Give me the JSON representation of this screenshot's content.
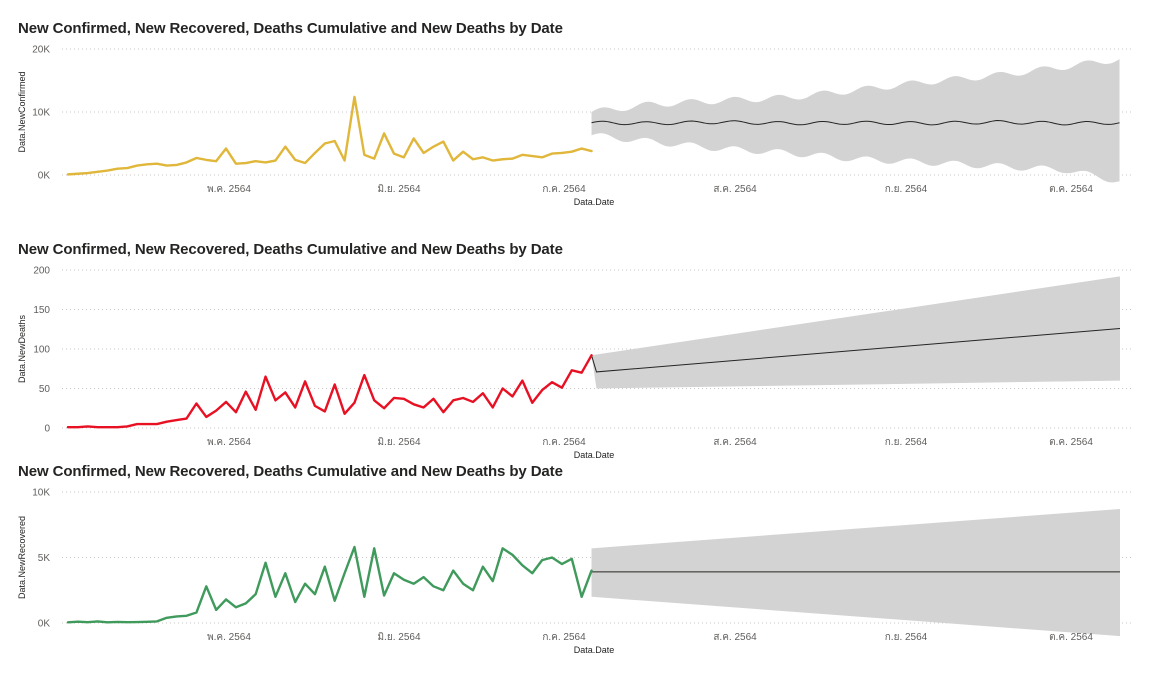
{
  "chart_data": [
    {
      "type": "line",
      "title": "New Confirmed, New Recovered, Deaths Cumulative and New Deaths by Date",
      "xlabel": "Data.Date",
      "ylabel": "Data.NewConfirmed",
      "x_ticks": [
        "พ.ค. 2564",
        "มิ.ย. 2564",
        "ก.ค. 2564",
        "ส.ค. 2564",
        "ก.ย. 2564",
        "ต.ค. 2564"
      ],
      "y_ticks": [
        "0K",
        "10K",
        "20K"
      ],
      "ylim": [
        0,
        20000
      ],
      "xlim": [
        "2021-04-01",
        "2021-10-31"
      ],
      "grid": true,
      "series_color": "#e0b73a",
      "forecast_color": "#252423",
      "band_color": "#d3d3d3",
      "series": [
        {
          "x": [
            "2021-04-01",
            "2021-04-03",
            "2021-04-05",
            "2021-04-07",
            "2021-04-09",
            "2021-04-11",
            "2021-04-13",
            "2021-04-15",
            "2021-04-17",
            "2021-04-19",
            "2021-04-21",
            "2021-04-23",
            "2021-04-25",
            "2021-04-27",
            "2021-04-29",
            "2021-05-01",
            "2021-05-03",
            "2021-05-05",
            "2021-05-07",
            "2021-05-09",
            "2021-05-11",
            "2021-05-13",
            "2021-05-15",
            "2021-05-17",
            "2021-05-19",
            "2021-05-21",
            "2021-05-23",
            "2021-05-25",
            "2021-05-27",
            "2021-05-29",
            "2021-05-31",
            "2021-06-02",
            "2021-06-04",
            "2021-06-06",
            "2021-06-08",
            "2021-06-10",
            "2021-06-12",
            "2021-06-14",
            "2021-06-16",
            "2021-06-18",
            "2021-06-20",
            "2021-06-22",
            "2021-06-24",
            "2021-06-26",
            "2021-06-28",
            "2021-06-30",
            "2021-07-02",
            "2021-07-04",
            "2021-07-06",
            "2021-07-08",
            "2021-07-10",
            "2021-07-12",
            "2021-07-14",
            "2021-07-16"
          ],
          "y": [
            100,
            200,
            300,
            500,
            700,
            1000,
            1100,
            1500,
            1700,
            1800,
            1500,
            1600,
            2000,
            2700,
            2400,
            2200,
            4200,
            1800,
            1900,
            2200,
            2000,
            2300,
            4500,
            2400,
            1900,
            3500,
            5000,
            5400,
            2300,
            12400,
            3200,
            2600,
            6600,
            3400,
            2800,
            5800,
            3500,
            4500,
            5300,
            2300,
            3700,
            2500,
            2800,
            2300,
            2500,
            2600,
            3200,
            3000,
            2800,
            3400,
            3500,
            3700,
            4200,
            3800
          ]
        }
      ],
      "forecast": {
        "x": [
          "2021-07-16",
          "2021-07-28",
          "2021-08-11",
          "2021-08-25",
          "2021-09-08",
          "2021-09-22",
          "2021-10-06",
          "2021-10-20",
          "2021-10-31"
        ],
        "y": [
          8300,
          8200,
          8400,
          8200,
          8300,
          8200,
          8400,
          8200,
          8300
        ],
        "upper": [
          10000,
          11200,
          11800,
          12300,
          13500,
          14800,
          15800,
          17200,
          18400
        ],
        "lower": [
          6300,
          5300,
          4200,
          3500,
          2500,
          2000,
          1400,
          800,
          -1000
        ]
      }
    },
    {
      "type": "line",
      "title": "New Confirmed, New Recovered, Deaths Cumulative and New Deaths by Date",
      "xlabel": "Data.Date",
      "ylabel": "Data.NewDeaths",
      "x_ticks": [
        "พ.ค. 2564",
        "มิ.ย. 2564",
        "ก.ค. 2564",
        "ส.ค. 2564",
        "ก.ย. 2564",
        "ต.ค. 2564"
      ],
      "y_ticks": [
        "0",
        "50",
        "100",
        "150",
        "200"
      ],
      "ylim": [
        0,
        200
      ],
      "xlim": [
        "2021-04-01",
        "2021-10-31"
      ],
      "grid": true,
      "series_color": "#e81123",
      "forecast_color": "#252423",
      "band_color": "#d3d3d3",
      "series": [
        {
          "x": [
            "2021-04-01",
            "2021-04-03",
            "2021-04-05",
            "2021-04-07",
            "2021-04-09",
            "2021-04-11",
            "2021-04-13",
            "2021-04-15",
            "2021-04-17",
            "2021-04-19",
            "2021-04-21",
            "2021-04-23",
            "2021-04-25",
            "2021-04-27",
            "2021-04-29",
            "2021-05-01",
            "2021-05-03",
            "2021-05-05",
            "2021-05-07",
            "2021-05-09",
            "2021-05-11",
            "2021-05-13",
            "2021-05-15",
            "2021-05-17",
            "2021-05-19",
            "2021-05-21",
            "2021-05-23",
            "2021-05-25",
            "2021-05-27",
            "2021-05-29",
            "2021-05-31",
            "2021-06-02",
            "2021-06-04",
            "2021-06-06",
            "2021-06-08",
            "2021-06-10",
            "2021-06-12",
            "2021-06-14",
            "2021-06-16",
            "2021-06-18",
            "2021-06-20",
            "2021-06-22",
            "2021-06-24",
            "2021-06-26",
            "2021-06-28",
            "2021-06-30",
            "2021-07-02",
            "2021-07-04",
            "2021-07-06",
            "2021-07-08",
            "2021-07-10",
            "2021-07-12",
            "2021-07-14",
            "2021-07-16"
          ],
          "y": [
            1,
            1,
            2,
            1,
            1,
            1,
            2,
            5,
            5,
            5,
            8,
            10,
            12,
            31,
            14,
            22,
            33,
            20,
            46,
            23,
            65,
            35,
            45,
            26,
            59,
            28,
            21,
            55,
            18,
            32,
            67,
            35,
            25,
            38,
            37,
            30,
            26,
            37,
            20,
            35,
            38,
            33,
            44,
            26,
            50,
            40,
            60,
            32,
            48,
            58,
            51,
            73,
            70,
            92
          ]
        }
      ],
      "forecast": {
        "x": [
          "2021-07-16",
          "2021-07-17",
          "2021-10-31"
        ],
        "y": [
          92,
          71,
          126
        ],
        "upper": [
          92,
          93,
          192
        ],
        "lower": [
          92,
          50,
          60
        ]
      }
    },
    {
      "type": "line",
      "title": "New Confirmed, New Recovered, Deaths Cumulative and New Deaths by Date",
      "xlabel": "Data.Date",
      "ylabel": "Data.NewRecovered",
      "x_ticks": [
        "พ.ค. 2564",
        "มิ.ย. 2564",
        "ก.ค. 2564",
        "ส.ค. 2564",
        "ก.ย. 2564",
        "ต.ค. 2564"
      ],
      "y_ticks": [
        "0K",
        "5K",
        "10K"
      ],
      "ylim": [
        0,
        10000
      ],
      "xlim": [
        "2021-04-01",
        "2021-10-31"
      ],
      "grid": true,
      "series_color": "#3f9a5c",
      "forecast_color": "#252423",
      "band_color": "#d3d3d3",
      "series": [
        {
          "x": [
            "2021-04-01",
            "2021-04-03",
            "2021-04-05",
            "2021-04-07",
            "2021-04-09",
            "2021-04-11",
            "2021-04-13",
            "2021-04-15",
            "2021-04-17",
            "2021-04-19",
            "2021-04-21",
            "2021-04-23",
            "2021-04-25",
            "2021-04-27",
            "2021-04-29",
            "2021-05-01",
            "2021-05-03",
            "2021-05-05",
            "2021-05-07",
            "2021-05-09",
            "2021-05-11",
            "2021-05-13",
            "2021-05-15",
            "2021-05-17",
            "2021-05-19",
            "2021-05-21",
            "2021-05-23",
            "2021-05-25",
            "2021-05-27",
            "2021-05-29",
            "2021-05-31",
            "2021-06-02",
            "2021-06-04",
            "2021-06-06",
            "2021-06-08",
            "2021-06-10",
            "2021-06-12",
            "2021-06-14",
            "2021-06-16",
            "2021-06-18",
            "2021-06-20",
            "2021-06-22",
            "2021-06-24",
            "2021-06-26",
            "2021-06-28",
            "2021-06-30",
            "2021-07-02",
            "2021-07-04",
            "2021-07-06",
            "2021-07-08",
            "2021-07-10",
            "2021-07-12",
            "2021-07-14",
            "2021-07-16"
          ],
          "y": [
            50,
            100,
            60,
            120,
            50,
            80,
            60,
            70,
            90,
            120,
            400,
            500,
            550,
            800,
            2800,
            1000,
            1800,
            1200,
            1500,
            2200,
            4600,
            2000,
            3800,
            1600,
            3000,
            2200,
            4300,
            1700,
            3800,
            5800,
            2000,
            5700,
            2100,
            3800,
            3300,
            3000,
            3500,
            2800,
            2500,
            4000,
            3000,
            2500,
            4300,
            3200,
            5700,
            5200,
            4400,
            3800,
            4800,
            5000,
            4500,
            4900,
            2000,
            4000
          ]
        }
      ],
      "forecast": {
        "x": [
          "2021-07-16",
          "2021-10-31"
        ],
        "y": [
          3900,
          3900
        ],
        "upper": [
          5700,
          8700
        ],
        "lower": [
          2000,
          -1000
        ]
      }
    }
  ]
}
